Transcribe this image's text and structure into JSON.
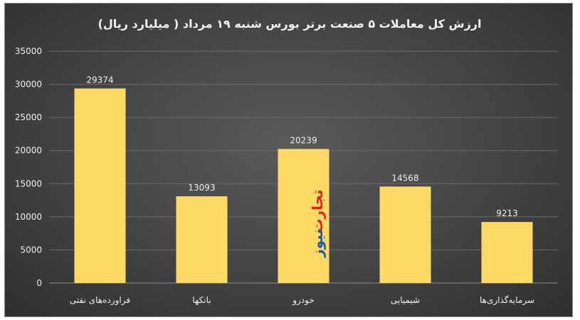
{
  "chart_data": {
    "type": "bar",
    "title": "ارزش کل معاملات ۵ صنعت برتر بورس شنبه ۱۹ مرداد ( میلیارد ریال)",
    "categories": [
      "فراورده‌های نفتی",
      "بانکها",
      "خودرو",
      "شیمیایی",
      "سرمایه‌گذاری‌ها"
    ],
    "values": [
      29374,
      13093,
      20239,
      14568,
      9213
    ],
    "ylim": [
      0,
      35000
    ],
    "yticks": [
      0,
      5000,
      10000,
      15000,
      20000,
      25000,
      30000,
      35000
    ],
    "grid": true,
    "bar_color": "#ffd966",
    "xlabel": "",
    "ylabel": ""
  },
  "watermark": {
    "line1": "تجارت",
    "line2": "نیوز",
    "color1": "#e0201c",
    "color2": "#1e57b0"
  }
}
